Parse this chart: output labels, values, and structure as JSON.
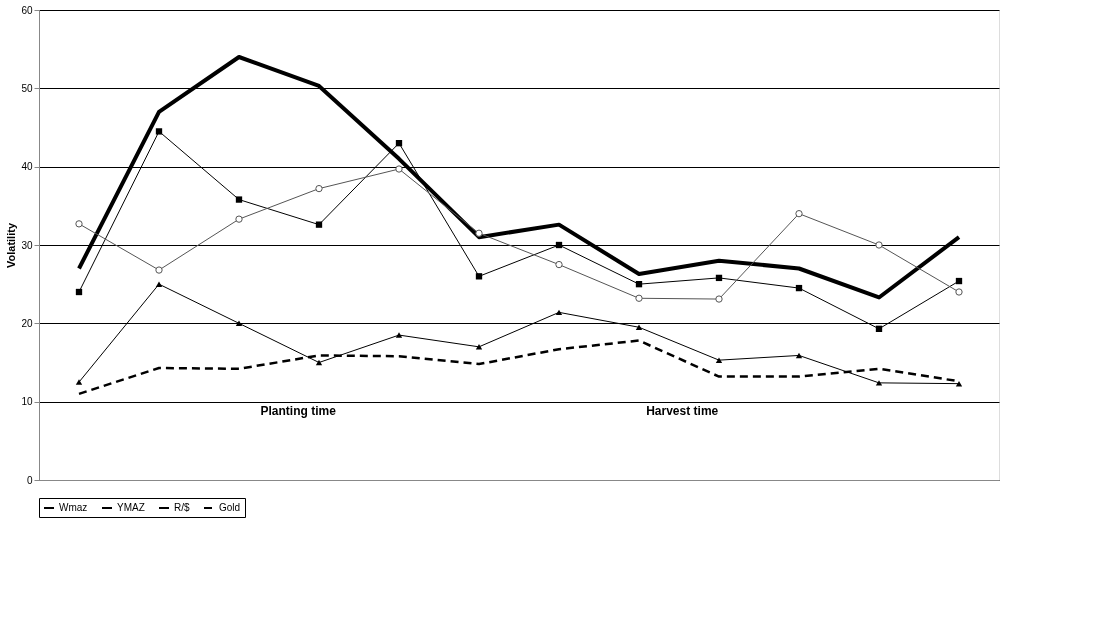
{
  "chart_data": {
    "type": "line",
    "ylabel": "Volatility",
    "categories": [
      null,
      null,
      null,
      null,
      null,
      null,
      null,
      null,
      null,
      null,
      null,
      null
    ],
    "ylim": [
      0,
      60
    ],
    "yticks": [
      0,
      10,
      20,
      30,
      40,
      50,
      60
    ],
    "grid": "y",
    "legend": "bottom",
    "tick_labels": "y",
    "annotations": [
      "Planting time",
      "Harvest time"
    ],
    "series": [
      {
        "name": "Wmaz",
        "color": "#000000",
        "marker": "none",
        "line_style": "solid",
        "values": [
          27,
          47,
          54,
          50.3,
          41,
          31,
          32.6,
          26.3,
          28,
          27,
          23.3,
          31
        ]
      },
      {
        "name": "YMAZ",
        "color": "#000000",
        "marker": "square",
        "line_style": "solid",
        "values": [
          24,
          44.5,
          35.8,
          32.6,
          43,
          26,
          30,
          25,
          25.8,
          24.5,
          19.3,
          25.4
        ]
      },
      {
        "color": "#555555",
        "marker": "circle",
        "line_style": "solid",
        "values": [
          32.7,
          26.8,
          33.3,
          37.2,
          39.7,
          31.5,
          27.5,
          23.2,
          23.1,
          34,
          30,
          24
        ]
      },
      {
        "name": "R/$",
        "color": "#000000",
        "marker": "triangle",
        "line_style": "solid",
        "values": [
          12.5,
          25,
          20,
          15,
          18.5,
          17,
          21.4,
          19.5,
          15.3,
          15.9,
          12.4,
          12.3
        ]
      },
      {
        "name": "Gold",
        "color": "#000000",
        "marker": "none",
        "line_style": "dashed",
        "values": [
          11,
          14.3,
          14.2,
          15.9,
          15.8,
          14.8,
          16.7,
          17.8,
          13.2,
          13.2,
          14.2,
          12.6
        ]
      }
    ]
  }
}
